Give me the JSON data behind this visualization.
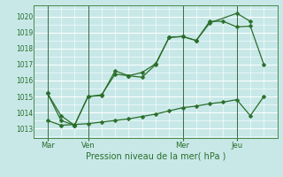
{
  "xlabel": "Pression niveau de la mer( hPa )",
  "bg_color": "#c8e8e8",
  "grid_color": "#ffffff",
  "line_color": "#2a6e2a",
  "ylim": [
    1012.4,
    1020.7
  ],
  "yticks": [
    1013,
    1014,
    1015,
    1016,
    1017,
    1018,
    1019,
    1020
  ],
  "xlim": [
    0,
    18
  ],
  "x_tick_labels": [
    "Mar",
    "Ven",
    "Mer",
    "Jeu"
  ],
  "x_tick_positions": [
    1,
    4,
    11,
    15
  ],
  "vline_positions": [
    1,
    4,
    11,
    15
  ],
  "line1_x": [
    1,
    2,
    3,
    4,
    5,
    6,
    7,
    8,
    9,
    10,
    11,
    12,
    13,
    15,
    16
  ],
  "line1_y": [
    1015.2,
    1013.5,
    1013.2,
    1015.0,
    1015.05,
    1016.6,
    1016.3,
    1016.2,
    1017.0,
    1018.7,
    1018.75,
    1018.5,
    1019.6,
    1020.2,
    1019.7
  ],
  "line2_x": [
    1,
    2,
    3,
    4,
    5,
    6,
    7,
    8,
    9,
    10,
    11,
    12,
    13,
    14,
    15,
    16,
    17
  ],
  "line2_y": [
    1015.2,
    1013.8,
    1013.2,
    1015.0,
    1015.1,
    1016.4,
    1016.3,
    1016.5,
    1017.05,
    1018.7,
    1018.75,
    1018.5,
    1019.7,
    1019.7,
    1019.35,
    1019.4,
    1017.0
  ],
  "line3_x": [
    1,
    2,
    3,
    4,
    5,
    6,
    7,
    8,
    9,
    10,
    11,
    12,
    13,
    14,
    15,
    16,
    17
  ],
  "line3_y": [
    1013.5,
    1013.2,
    1013.25,
    1013.3,
    1013.4,
    1013.5,
    1013.6,
    1013.75,
    1013.9,
    1014.1,
    1014.3,
    1014.4,
    1014.55,
    1014.65,
    1014.8,
    1013.8,
    1015.0
  ],
  "marker_size": 2.5
}
